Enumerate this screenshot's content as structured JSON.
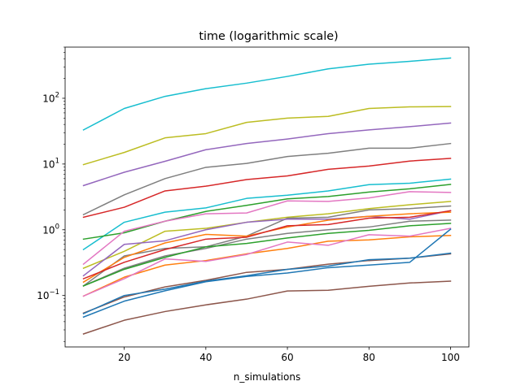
{
  "chart_data": {
    "type": "line",
    "title": "time (logarithmic scale)",
    "xlabel": "n_simulations",
    "ylabel": "",
    "yscale": "log",
    "xlim": [
      5.5,
      104.5
    ],
    "ylim": [
      0.0165,
      600
    ],
    "grid": false,
    "x": [
      10,
      20,
      30,
      40,
      50,
      60,
      70,
      80,
      90,
      100
    ],
    "xticks": [
      20,
      40,
      60,
      80,
      100
    ],
    "xtick_labels": [
      "20",
      "40",
      "60",
      "80",
      "100"
    ],
    "yticks": [
      0.1,
      1,
      10,
      100
    ],
    "ytick_base": [
      "10",
      "10",
      "10",
      "10"
    ],
    "ytick_exp": [
      "−1",
      "0",
      "1",
      "2"
    ],
    "series": [
      {
        "color": "#17becf",
        "values": [
          33,
          70,
          107,
          140,
          170,
          215,
          280,
          330,
          365,
          410
        ]
      },
      {
        "color": "#bcbd22",
        "values": [
          9.8,
          15,
          25,
          29,
          43,
          50,
          53,
          70,
          74,
          75
        ]
      },
      {
        "color": "#9467bd",
        "values": [
          4.7,
          7.5,
          11,
          16.5,
          20.5,
          24,
          29,
          33,
          37,
          42
        ]
      },
      {
        "color": "#7f7f7f",
        "values": [
          1.7,
          3.4,
          6.0,
          8.9,
          10.2,
          13,
          14.6,
          17.4,
          17.4,
          20.5
        ]
      },
      {
        "color": "#d62728",
        "values": [
          1.55,
          2.2,
          3.9,
          4.6,
          5.8,
          6.6,
          8.3,
          9.3,
          11.1,
          12.2
        ]
      },
      {
        "color": "#17becf",
        "values": [
          0.5,
          1.3,
          1.85,
          2.15,
          3.0,
          3.35,
          3.9,
          4.85,
          5.1,
          5.9
        ]
      },
      {
        "color": "#2ca02c",
        "values": [
          0.72,
          0.9,
          1.35,
          1.9,
          2.35,
          2.95,
          3.2,
          3.75,
          4.2,
          4.9
        ]
      },
      {
        "color": "#e377c2",
        "values": [
          0.3,
          0.95,
          1.35,
          1.75,
          1.8,
          2.75,
          2.7,
          3.05,
          3.8,
          3.7
        ]
      },
      {
        "color": "#bcbd22",
        "values": [
          0.26,
          0.47,
          0.95,
          1.05,
          1.3,
          1.55,
          1.75,
          2.1,
          2.4,
          2.7
        ]
      },
      {
        "color": "#7f7f7f",
        "values": [
          0.14,
          0.4,
          0.52,
          0.55,
          0.8,
          1.5,
          1.55,
          2.0,
          2.1,
          2.3
        ]
      },
      {
        "color": "#9467bd",
        "values": [
          0.2,
          0.6,
          0.68,
          1.0,
          1.3,
          1.45,
          1.45,
          1.6,
          1.45,
          1.95
        ]
      },
      {
        "color": "#ff7f0e",
        "values": [
          0.16,
          0.38,
          0.63,
          0.85,
          0.8,
          1.1,
          1.4,
          1.6,
          1.75,
          1.85
        ]
      },
      {
        "color": "#d62728",
        "values": [
          0.18,
          0.32,
          0.5,
          0.72,
          0.77,
          1.15,
          1.2,
          1.5,
          1.55,
          1.95
        ]
      },
      {
        "color": "#7f7f7f",
        "values": [
          0.14,
          0.26,
          0.4,
          0.52,
          0.72,
          0.88,
          1.0,
          1.1,
          1.35,
          1.4
        ]
      },
      {
        "color": "#2ca02c",
        "values": [
          0.14,
          0.25,
          0.38,
          0.55,
          0.62,
          0.75,
          0.88,
          0.98,
          1.15,
          1.25
        ]
      },
      {
        "color": "#ff7f0e",
        "values": [
          0.098,
          0.19,
          0.29,
          0.34,
          0.43,
          0.52,
          0.67,
          0.7,
          0.78,
          0.82
        ]
      },
      {
        "color": "#e377c2",
        "values": [
          0.098,
          0.18,
          0.36,
          0.33,
          0.42,
          0.65,
          0.58,
          0.84,
          0.8,
          1.05
        ]
      },
      {
        "color": "#8c564b",
        "values": [
          0.054,
          0.095,
          0.135,
          0.17,
          0.225,
          0.25,
          0.3,
          0.34,
          0.37,
          0.43
        ]
      },
      {
        "color": "#1f77b4",
        "values": [
          0.053,
          0.1,
          0.125,
          0.165,
          0.2,
          0.25,
          0.28,
          0.35,
          0.37,
          0.44
        ]
      },
      {
        "color": "#1f77b4",
        "values": [
          0.047,
          0.082,
          0.118,
          0.162,
          0.195,
          0.22,
          0.265,
          0.29,
          0.32,
          1.02
        ]
      },
      {
        "color": "#8c564b",
        "values": [
          0.026,
          0.042,
          0.057,
          0.072,
          0.088,
          0.117,
          0.12,
          0.138,
          0.155,
          0.165
        ]
      }
    ]
  }
}
